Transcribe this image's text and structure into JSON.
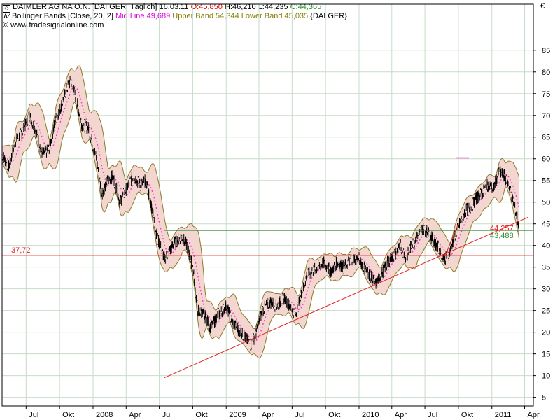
{
  "header": {
    "symbol": "DAIMLER AG NA O.N. [DAI GER  Täglich]",
    "date": "16.03.11",
    "open": "O:45,850",
    "high": "H:46,210",
    "low": "L:44,235",
    "close": "C:44,365",
    "indicator": "Bollinger Bands [Close, 20, 2]",
    "mid": "Mid Line 49,689",
    "upper": "Upper Band 54,344",
    "lower": "Lower Band 45,035",
    "indicator_suffix": "{DAI GER}",
    "source": "www.tradesignalonline.com",
    "currency": "€"
  },
  "colors": {
    "price": "#000000",
    "band": "#8c7a2a",
    "band_fill": "#f3d6d0",
    "mid": "#ff33cc",
    "support": "#e32020",
    "green": "#2e8b2e",
    "grid": "#c8dcc8",
    "header_red": "#e00000",
    "header_green": "#209020",
    "header_magenta": "#dd00dd",
    "header_olive": "#808000"
  },
  "chart_data": {
    "type": "line",
    "y_axis": {
      "side": "right",
      "ylim": [
        3,
        89
      ],
      "ticks": [
        5,
        10,
        15,
        20,
        25,
        30,
        35,
        40,
        45,
        50,
        55,
        60,
        65,
        70,
        75,
        80,
        85
      ]
    },
    "x_axis": {
      "range": [
        "2007-04-26",
        "2011-04-25"
      ],
      "ticks": [
        {
          "label": "Jul",
          "date": "2007-07-01"
        },
        {
          "label": "Okt",
          "date": "2007-10-01"
        },
        {
          "label": "2008",
          "date": "2008-01-01"
        },
        {
          "label": "Apr",
          "date": "2008-04-01"
        },
        {
          "label": "Jul",
          "date": "2008-07-01"
        },
        {
          "label": "Okt",
          "date": "2008-10-01"
        },
        {
          "label": "2009",
          "date": "2009-01-01"
        },
        {
          "label": "Apr",
          "date": "2009-04-01"
        },
        {
          "label": "Jul",
          "date": "2009-07-01"
        },
        {
          "label": "Okt",
          "date": "2009-10-01"
        },
        {
          "label": "2010",
          "date": "2010-01-01"
        },
        {
          "label": "Apr",
          "date": "2010-04-01"
        },
        {
          "label": "Jul",
          "date": "2010-07-01"
        },
        {
          "label": "Okt",
          "date": "2010-10-01"
        },
        {
          "label": "2011",
          "date": "2011-01-01"
        },
        {
          "label": "Apr",
          "date": "2011-04-01"
        }
      ]
    },
    "grid": true,
    "series": [
      {
        "name": "DAIMLER AG NA O.N.",
        "role": "close",
        "points": [
          [
            "2007-04-26",
            61
          ],
          [
            "2007-05-15",
            58
          ],
          [
            "2007-06-01",
            64
          ],
          [
            "2007-06-20",
            66
          ],
          [
            "2007-07-10",
            70
          ],
          [
            "2007-07-25",
            67
          ],
          [
            "2007-08-15",
            61
          ],
          [
            "2007-09-01",
            62
          ],
          [
            "2007-09-20",
            69
          ],
          [
            "2007-10-05",
            72
          ],
          [
            "2007-10-20",
            76
          ],
          [
            "2007-11-01",
            78
          ],
          [
            "2007-11-15",
            74
          ],
          [
            "2007-12-01",
            68
          ],
          [
            "2007-12-20",
            67
          ],
          [
            "2008-01-10",
            60
          ],
          [
            "2008-01-25",
            52
          ],
          [
            "2008-02-10",
            55
          ],
          [
            "2008-02-25",
            56
          ],
          [
            "2008-03-15",
            50
          ],
          [
            "2008-04-01",
            53
          ],
          [
            "2008-04-20",
            56
          ],
          [
            "2008-05-10",
            54
          ],
          [
            "2008-05-25",
            55
          ],
          [
            "2008-06-10",
            49
          ],
          [
            "2008-06-25",
            42
          ],
          [
            "2008-07-15",
            37
          ],
          [
            "2008-08-01",
            39
          ],
          [
            "2008-08-15",
            41
          ],
          [
            "2008-09-01",
            42
          ],
          [
            "2008-09-15",
            40
          ],
          [
            "2008-10-01",
            35
          ],
          [
            "2008-10-15",
            25
          ],
          [
            "2008-11-01",
            24
          ],
          [
            "2008-11-20",
            21
          ],
          [
            "2008-12-10",
            24
          ],
          [
            "2009-01-01",
            26
          ],
          [
            "2009-01-20",
            22
          ],
          [
            "2009-02-10",
            20
          ],
          [
            "2009-03-01",
            18
          ],
          [
            "2009-03-10",
            17
          ],
          [
            "2009-03-25",
            20
          ],
          [
            "2009-04-10",
            25
          ],
          [
            "2009-05-01",
            27
          ],
          [
            "2009-05-20",
            26
          ],
          [
            "2009-06-10",
            28
          ],
          [
            "2009-06-25",
            26
          ],
          [
            "2009-07-10",
            24
          ],
          [
            "2009-07-25",
            28
          ],
          [
            "2009-08-10",
            33
          ],
          [
            "2009-08-25",
            34
          ],
          [
            "2009-09-10",
            35
          ],
          [
            "2009-09-25",
            36
          ],
          [
            "2009-10-15",
            34
          ],
          [
            "2009-11-01",
            36
          ],
          [
            "2009-11-20",
            35
          ],
          [
            "2009-12-10",
            37
          ],
          [
            "2010-01-01",
            37
          ],
          [
            "2010-01-15",
            35
          ],
          [
            "2010-02-01",
            33
          ],
          [
            "2010-02-15",
            31
          ],
          [
            "2010-03-01",
            33
          ],
          [
            "2010-03-20",
            36
          ],
          [
            "2010-04-10",
            38
          ],
          [
            "2010-04-25",
            40
          ],
          [
            "2010-05-10",
            37
          ],
          [
            "2010-05-25",
            40
          ],
          [
            "2010-06-10",
            42
          ],
          [
            "2010-06-25",
            44
          ],
          [
            "2010-07-10",
            43
          ],
          [
            "2010-07-25",
            41
          ],
          [
            "2010-08-10",
            39
          ],
          [
            "2010-08-25",
            37
          ],
          [
            "2010-09-05",
            38
          ],
          [
            "2010-09-20",
            42
          ],
          [
            "2010-10-05",
            45
          ],
          [
            "2010-10-20",
            48
          ],
          [
            "2010-11-05",
            49
          ],
          [
            "2010-11-20",
            51
          ],
          [
            "2010-12-05",
            52
          ],
          [
            "2010-12-20",
            54
          ],
          [
            "2011-01-05",
            53
          ],
          [
            "2011-01-20",
            57
          ],
          [
            "2011-02-05",
            56
          ],
          [
            "2011-02-20",
            53
          ],
          [
            "2011-03-01",
            50
          ],
          [
            "2011-03-10",
            47
          ],
          [
            "2011-03-16",
            44.4
          ]
        ]
      },
      {
        "name": "Bollinger Bands [Close, 20, 2]",
        "role": "bands"
      },
      {
        "name": "Mid Line",
        "role": "mid"
      }
    ],
    "annotations": [
      {
        "type": "horizontal",
        "value": 37.72,
        "label": "37,72",
        "from": "2007-04-26",
        "to": "2011-04-25"
      },
      {
        "type": "horizontal",
        "value": 43.488,
        "label": "43,488",
        "from": "2008-07-15",
        "to": "2011-04-25"
      },
      {
        "type": "trend",
        "from": [
          "2008-07-15",
          9.5
        ],
        "to": [
          "2011-04-10",
          46.5
        ]
      },
      {
        "type": "trend",
        "from": [
          "2010-08-25",
          37.5
        ],
        "to": [
          "2010-10-01",
          45
        ]
      },
      {
        "type": "horizontal",
        "value": 60.2,
        "from": "2010-09-25",
        "to": "2010-10-30"
      },
      {
        "type": "value-label",
        "value": 44.257,
        "label": "44,257"
      }
    ]
  }
}
